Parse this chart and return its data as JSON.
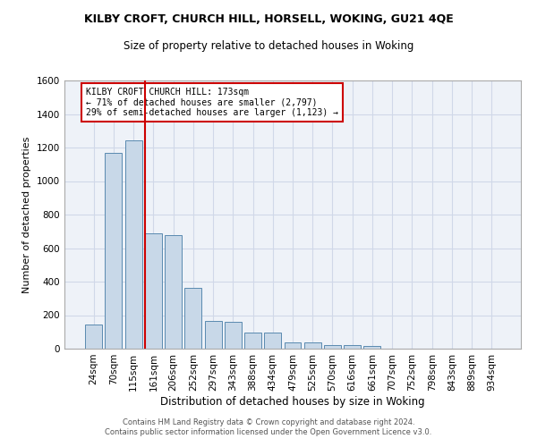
{
  "title": "KILBY CROFT, CHURCH HILL, HORSELL, WOKING, GU21 4QE",
  "subtitle": "Size of property relative to detached houses in Woking",
  "xlabel": "Distribution of detached houses by size in Woking",
  "ylabel": "Number of detached properties",
  "footer_line1": "Contains HM Land Registry data © Crown copyright and database right 2024.",
  "footer_line2": "Contains public sector information licensed under the Open Government Licence v3.0.",
  "annotation_title": "KILBY CROFT CHURCH HILL: 173sqm",
  "annotation_line2": "← 71% of detached houses are smaller (2,797)",
  "annotation_line3": "29% of semi-detached houses are larger (1,123) →",
  "bar_categories": [
    "24sqm",
    "70sqm",
    "115sqm",
    "161sqm",
    "206sqm",
    "252sqm",
    "297sqm",
    "343sqm",
    "388sqm",
    "434sqm",
    "479sqm",
    "525sqm",
    "570sqm",
    "616sqm",
    "661sqm",
    "707sqm",
    "752sqm",
    "798sqm",
    "843sqm",
    "889sqm",
    "934sqm"
  ],
  "bar_values": [
    145,
    1170,
    1245,
    690,
    680,
    365,
    165,
    160,
    95,
    95,
    40,
    38,
    22,
    20,
    18,
    0,
    0,
    0,
    0,
    0,
    0
  ],
  "bar_color": "#c8d8e8",
  "bar_edge_color": "#5a8ab0",
  "vline_color": "#cc0000",
  "vline_x": 2.575,
  "annotation_box_color": "#cc0000",
  "ylim": [
    0,
    1600
  ],
  "yticks": [
    0,
    200,
    400,
    600,
    800,
    1000,
    1200,
    1400,
    1600
  ],
  "grid_color": "#d0d8e8",
  "background_color": "#eef2f8",
  "title_fontsize": 9,
  "subtitle_fontsize": 8.5,
  "xlabel_fontsize": 8.5,
  "ylabel_fontsize": 8,
  "tick_fontsize": 7.5,
  "annotation_fontsize": 7,
  "footer_fontsize": 6
}
